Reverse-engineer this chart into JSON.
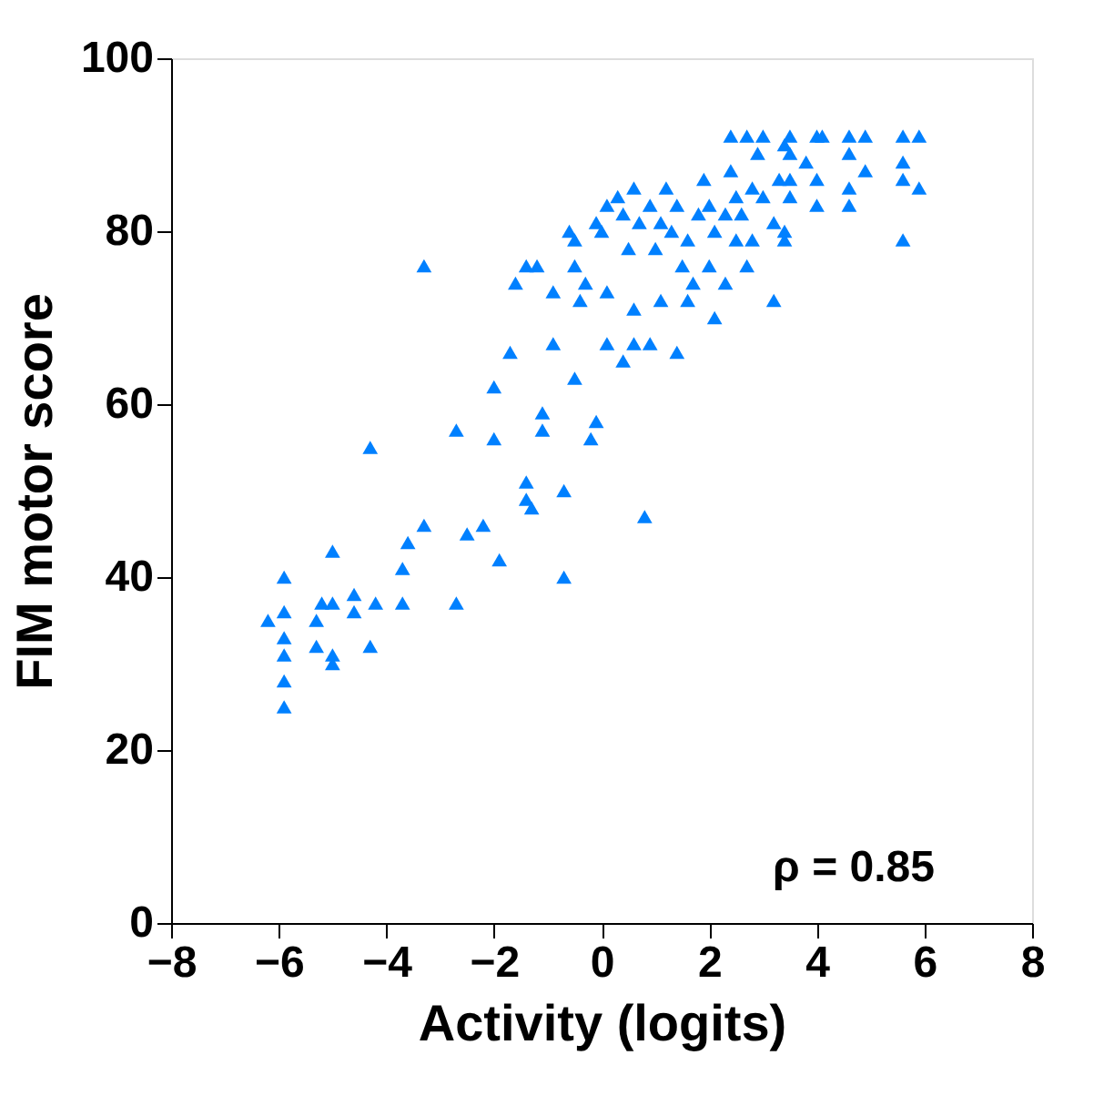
{
  "chart_data": {
    "type": "scatter",
    "xlabel": "Activity (logits)",
    "ylabel": "FIM motor score",
    "xlim": [
      -8,
      8
    ],
    "xticks": [
      -8,
      -6,
      -4,
      -2,
      0,
      2,
      4,
      6,
      8
    ],
    "ylim": [
      0,
      100
    ],
    "yticks": [
      0,
      20,
      40,
      60,
      80,
      100
    ],
    "grid": false,
    "marker": "triangle",
    "annotations": [
      "ρ = 0.85"
    ],
    "series": [
      {
        "color": "#0080ff",
        "x": [
          -6.2,
          -5.9,
          -5.9,
          -5.9,
          -5.9,
          -5.9,
          -5.9,
          -5.3,
          -5.3,
          -5.2,
          -5.0,
          -5.0,
          -5.0,
          -5.0,
          -4.6,
          -4.6,
          -4.2,
          -4.3,
          -4.3,
          -3.7,
          -3.7,
          -3.6,
          -3.3,
          -3.3,
          -2.7,
          -2.7,
          -2.5,
          -2.2,
          -2.0,
          -2.0,
          -1.9,
          -1.7,
          -1.4,
          -1.4,
          -1.3,
          -1.1,
          -1.1,
          -0.7,
          -0.7,
          -0.5,
          -0.2,
          -0.1,
          0.8,
          -1.6,
          -1.4,
          -1.2,
          -0.9,
          -0.9,
          -0.5,
          -0.4,
          -0.3,
          -0.1,
          -0.5,
          0.1,
          0.1,
          0.4,
          0.6,
          0.6,
          0.9,
          1.1,
          1.4,
          1.6,
          1.7,
          2.1,
          2.3,
          2.7,
          3.2,
          3.4,
          3.4,
          0.1,
          0.3,
          0.4,
          0.6,
          0.7,
          0.9,
          1.1,
          1.2,
          1.3,
          1.4,
          1.6,
          1.8,
          1.9,
          2.0,
          2.1,
          2.3,
          2.4,
          2.5,
          2.6,
          2.8,
          2.9,
          3.0,
          3.2,
          3.3,
          3.4,
          3.5,
          3.8,
          2.4,
          2.7,
          3.0,
          3.5,
          4.0,
          4.1,
          4.6,
          4.9,
          5.6,
          5.9,
          3.5,
          3.5,
          4.0,
          4.0,
          4.6,
          4.6,
          4.6,
          4.9,
          5.6,
          5.6,
          5.9,
          5.6,
          2.5,
          2.8,
          0.5,
          1.0,
          0.0,
          -0.6,
          1.5,
          2.0
        ],
        "values": [
          35,
          40,
          36,
          33,
          31,
          28,
          25,
          35,
          32,
          37,
          37,
          43,
          30,
          31,
          38,
          36,
          37,
          32,
          55,
          41,
          37,
          44,
          46,
          76,
          37,
          57,
          45,
          46,
          56,
          62,
          42,
          66,
          51,
          49,
          48,
          59,
          57,
          40,
          50,
          63,
          56,
          58,
          47,
          74,
          76,
          76,
          73,
          67,
          76,
          72,
          74,
          81,
          79,
          73,
          67,
          65,
          71,
          67,
          67,
          72,
          66,
          72,
          74,
          70,
          74,
          76,
          72,
          79,
          80,
          83,
          84,
          82,
          85,
          81,
          83,
          81,
          85,
          80,
          83,
          79,
          82,
          86,
          83,
          80,
          82,
          87,
          84,
          82,
          85,
          89,
          84,
          81,
          86,
          90,
          84,
          88,
          91,
          91,
          91,
          91,
          91,
          91,
          91,
          91,
          91,
          91,
          89,
          86,
          86,
          83,
          89,
          85,
          83,
          87,
          88,
          86,
          85,
          79,
          79,
          79,
          78,
          78,
          80,
          80,
          76,
          76
        ]
      }
    ]
  }
}
